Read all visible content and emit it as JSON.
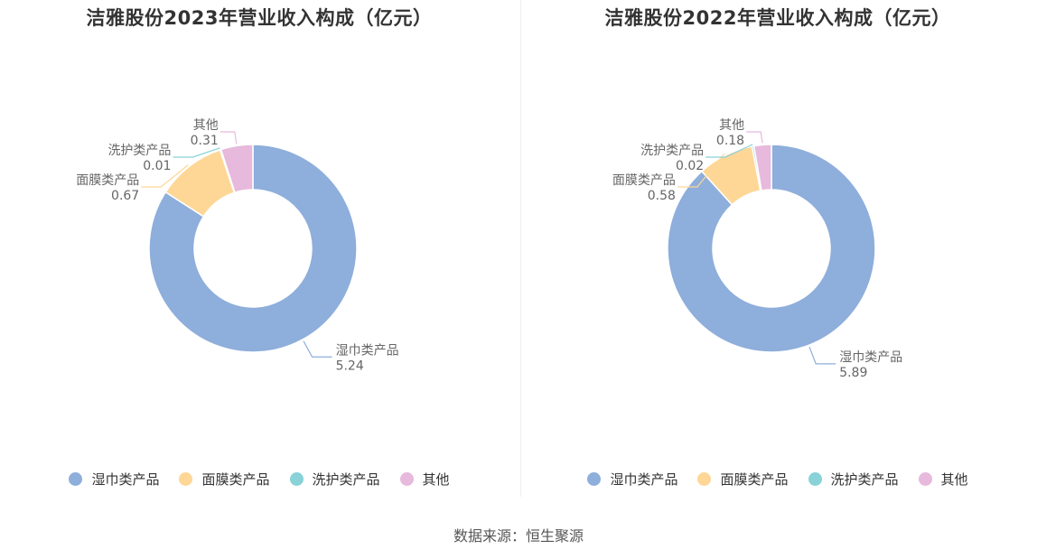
{
  "colors": [
    "#8eaedb",
    "#fed797",
    "#88d2d8",
    "#e7b9dc"
  ],
  "source": "数据来源：恒生聚源",
  "chart_data": [
    {
      "type": "pie",
      "title": "洁雅股份2023年营业收入构成（亿元）",
      "categories": [
        "湿巾类产品",
        "面膜类产品",
        "洗护类产品",
        "其他"
      ],
      "values": [
        5.24,
        0.67,
        0.01,
        0.31
      ],
      "value_labels": [
        "5.24",
        "0.67",
        "0.01",
        "0.31"
      ],
      "legend_position": "bottom"
    },
    {
      "type": "pie",
      "title": "洁雅股份2022年营业收入构成（亿元）",
      "categories": [
        "湿巾类产品",
        "面膜类产品",
        "洗护类产品",
        "其他"
      ],
      "values": [
        5.89,
        0.58,
        0.02,
        0.18
      ],
      "value_labels": [
        "5.89",
        "0.58",
        "0.02",
        "0.18"
      ],
      "legend_position": "bottom"
    }
  ]
}
